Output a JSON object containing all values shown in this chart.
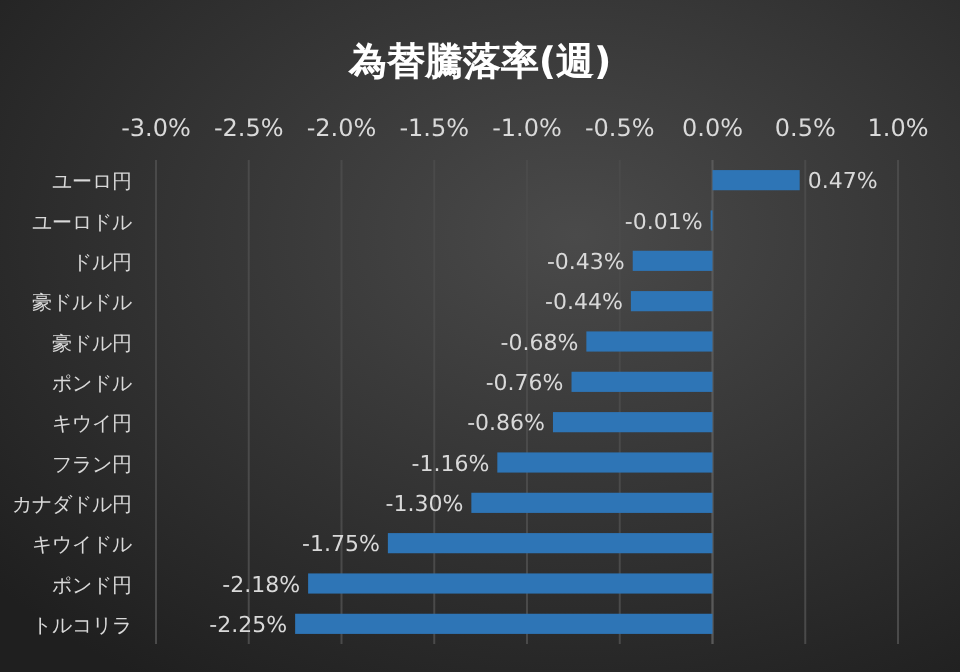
{
  "chart_data": {
    "type": "bar",
    "orientation": "horizontal",
    "title": "為替騰落率(週)",
    "categories": [
      "ユーロ円",
      "ユーロドル",
      "ドル円",
      "豪ドルドル",
      "豪ドル円",
      "ポンドル",
      "キウイ円",
      "フラン円",
      "カナダドル円",
      "キウイドル",
      "ポンド円",
      "トルコリラ"
    ],
    "values": [
      0.47,
      -0.01,
      -0.43,
      -0.44,
      -0.68,
      -0.76,
      -0.86,
      -1.16,
      -1.3,
      -1.75,
      -2.18,
      -2.25
    ],
    "value_labels": [
      "0.47%",
      "-0.01%",
      "-0.43%",
      "-0.44%",
      "-0.68%",
      "-0.76%",
      "-0.86%",
      "-1.16%",
      "-1.30%",
      "-1.75%",
      "-2.18%",
      "-2.25%"
    ],
    "color": "#2e75b6",
    "xlim": [
      -3,
      1
    ],
    "xticks": [
      {
        "value": -3,
        "label": "-3.0%"
      },
      {
        "value": -2.5,
        "label": "-2.5%"
      },
      {
        "value": -2,
        "label": "-2.0%"
      },
      {
        "value": -1.5,
        "label": "-1.5%"
      },
      {
        "value": -1,
        "label": "-1.0%"
      },
      {
        "value": -0.5,
        "label": "-0.5%"
      },
      {
        "value": 0,
        "label": "0.0%"
      },
      {
        "value": 0.5,
        "label": "0.5%"
      },
      {
        "value": 1,
        "label": "1.0%"
      }
    ],
    "grid": "x"
  }
}
